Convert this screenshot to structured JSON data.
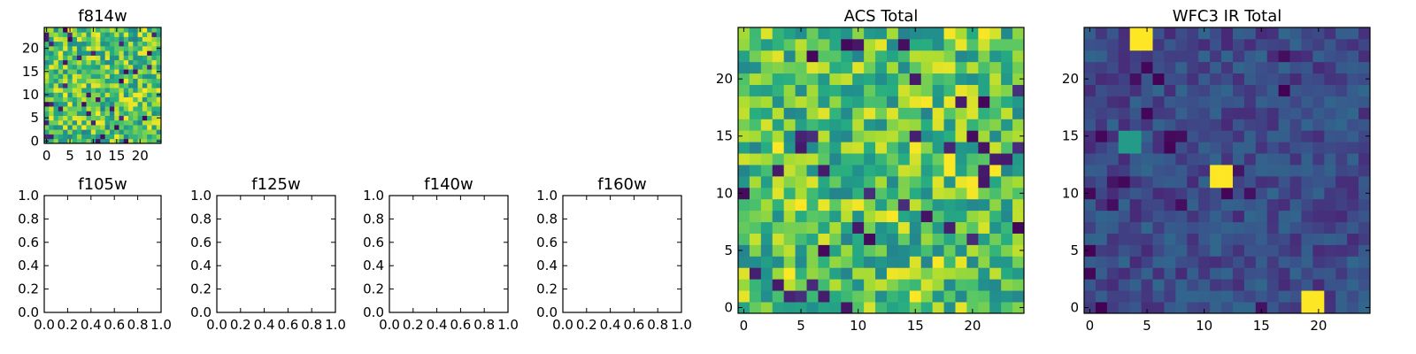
{
  "chart_data": [
    {
      "type": "heatmap",
      "title": "f814w",
      "grid_size": 25,
      "seed": 11,
      "colormap": "viridis",
      "pattern": "noise_high",
      "xlim": [
        -0.5,
        24.5
      ],
      "ylim": [
        -0.5,
        24.5
      ],
      "xticks": [
        0,
        5,
        10,
        15,
        20
      ],
      "yticks": [
        0,
        5,
        10,
        15,
        20
      ],
      "xlabel": "",
      "ylabel": ""
    },
    {
      "type": "empty",
      "title": "f105w",
      "xlim": [
        0,
        1
      ],
      "ylim": [
        0,
        1
      ],
      "xticks": [
        "0.0",
        "0.2",
        "0.4",
        "0.6",
        "0.8",
        "1.0"
      ],
      "yticks": [
        "0.0",
        "0.2",
        "0.4",
        "0.6",
        "0.8",
        "1.0"
      ]
    },
    {
      "type": "empty",
      "title": "f125w",
      "xlim": [
        0,
        1
      ],
      "ylim": [
        0,
        1
      ],
      "xticks": [
        "0.0",
        "0.2",
        "0.4",
        "0.6",
        "0.8",
        "1.0"
      ],
      "yticks": [
        "0.0",
        "0.2",
        "0.4",
        "0.6",
        "0.8",
        "1.0"
      ]
    },
    {
      "type": "empty",
      "title": "f140w",
      "xlim": [
        0,
        1
      ],
      "ylim": [
        0,
        1
      ],
      "xticks": [
        "0.0",
        "0.2",
        "0.4",
        "0.6",
        "0.8",
        "1.0"
      ],
      "yticks": [
        "0.0",
        "0.2",
        "0.4",
        "0.6",
        "0.8",
        "1.0"
      ]
    },
    {
      "type": "empty",
      "title": "f160w",
      "xlim": [
        0,
        1
      ],
      "ylim": [
        0,
        1
      ],
      "xticks": [
        "0.0",
        "0.2",
        "0.4",
        "0.6",
        "0.8",
        "1.0"
      ],
      "yticks": [
        "0.0",
        "0.2",
        "0.4",
        "0.6",
        "0.8",
        "1.0"
      ]
    },
    {
      "type": "heatmap",
      "title": "ACS Total",
      "grid_size": 25,
      "seed": 23,
      "colormap": "viridis",
      "pattern": "noise_high",
      "xlim": [
        -0.5,
        24.5
      ],
      "ylim": [
        -0.5,
        24.5
      ],
      "xticks": [
        0,
        5,
        10,
        15,
        20
      ],
      "yticks": [
        0,
        5,
        10,
        15,
        20
      ],
      "xlabel": "",
      "ylabel": ""
    },
    {
      "type": "heatmap",
      "title": "WFC3 IR Total",
      "grid_size": 25,
      "seed": 37,
      "colormap": "viridis",
      "pattern": "noise_low_with_sources",
      "sources": [
        {
          "x": 5,
          "y": 23.5,
          "value": 1.0
        },
        {
          "x": 11.5,
          "y": 12,
          "value": 1.0
        },
        {
          "x": 20,
          "y": 1,
          "value": 1.0
        },
        {
          "x": 3.5,
          "y": 14.5,
          "value": 0.55
        }
      ],
      "xlim": [
        -0.5,
        24.5
      ],
      "ylim": [
        -0.5,
        24.5
      ],
      "xticks": [
        0,
        5,
        10,
        15,
        20
      ],
      "yticks": [
        0,
        5,
        10,
        15,
        20
      ],
      "xlabel": "",
      "ylabel": ""
    }
  ]
}
